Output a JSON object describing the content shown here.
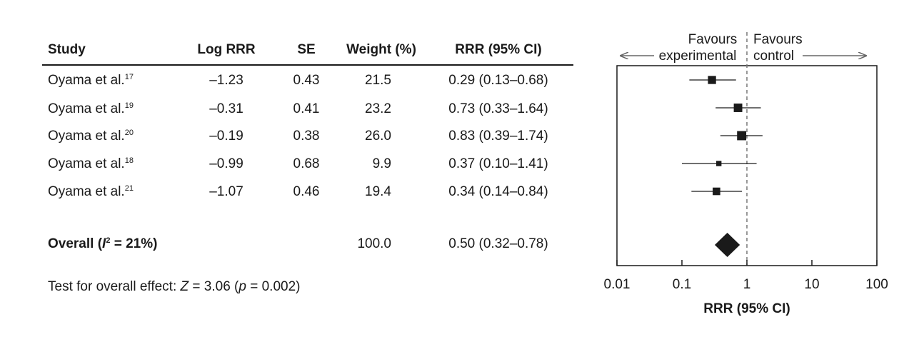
{
  "table": {
    "headers": {
      "study": "Study",
      "log_rrr": "Log RRR",
      "se": "SE",
      "weight": "Weight (%)",
      "rrr_ci": "RRR (95% CI)"
    },
    "rows": [
      {
        "study": "Oyama et al.",
        "ref": "17",
        "log_rrr": "–1.23",
        "se": "0.43",
        "weight": "21.5",
        "rrr_ci": "0.29 (0.13–0.68)"
      },
      {
        "study": "Oyama et al.",
        "ref": "19",
        "log_rrr": "–0.31",
        "se": "0.41",
        "weight": "23.2",
        "rrr_ci": "0.73 (0.33–1.64)"
      },
      {
        "study": "Oyama et al.",
        "ref": "20",
        "log_rrr": "–0.19",
        "se": "0.38",
        "weight": "26.0",
        "rrr_ci": "0.83 (0.39–1.74)"
      },
      {
        "study": "Oyama et al.",
        "ref": "18",
        "log_rrr": "–0.99",
        "se": "0.68",
        "weight": "9.9",
        "rrr_ci": "0.37 (0.10–1.41)"
      },
      {
        "study": "Oyama et al.",
        "ref": "21",
        "log_rrr": "–1.07",
        "se": "0.46",
        "weight": "19.4",
        "rrr_ci": "0.34 (0.14–0.84)"
      }
    ],
    "overall": {
      "label_prefix": "Overall (",
      "i_symbol": "I",
      "i_sup": "2",
      "label_suffix": " = 21%)",
      "weight": "100.0",
      "rrr_ci": "0.50 (0.32–0.78)"
    },
    "test": {
      "prefix": "Test for overall effect: ",
      "z_symbol": "Z",
      "mid": " = 3.06 (",
      "p_symbol": "p",
      "suffix": " = 0.002)"
    }
  },
  "chart_data": {
    "type": "forest",
    "x_scale": "log",
    "xlim": [
      0.01,
      100
    ],
    "xticks": [
      0.01,
      0.1,
      1,
      10,
      100
    ],
    "xtick_labels": [
      "0.01",
      "0.1",
      "1",
      "10",
      "100"
    ],
    "xlabel": "RRR (95% CI)",
    "reference_line": 1,
    "direction_labels": {
      "left_line1": "Favours",
      "left_line2": "experimental",
      "right_line1": "Favours",
      "right_line2": "control"
    },
    "studies": [
      {
        "estimate": 0.29,
        "lower": 0.13,
        "upper": 0.68,
        "weight": 21.5
      },
      {
        "estimate": 0.73,
        "lower": 0.33,
        "upper": 1.64,
        "weight": 23.2
      },
      {
        "estimate": 0.83,
        "lower": 0.39,
        "upper": 1.74,
        "weight": 26.0
      },
      {
        "estimate": 0.37,
        "lower": 0.1,
        "upper": 1.41,
        "weight": 9.9
      },
      {
        "estimate": 0.34,
        "lower": 0.14,
        "upper": 0.84,
        "weight": 19.4
      }
    ],
    "overall": {
      "estimate": 0.5,
      "lower": 0.32,
      "upper": 0.78
    },
    "colors": {
      "ink": "#1a1a1a",
      "refline": "#777777",
      "arrow": "#666666"
    }
  }
}
